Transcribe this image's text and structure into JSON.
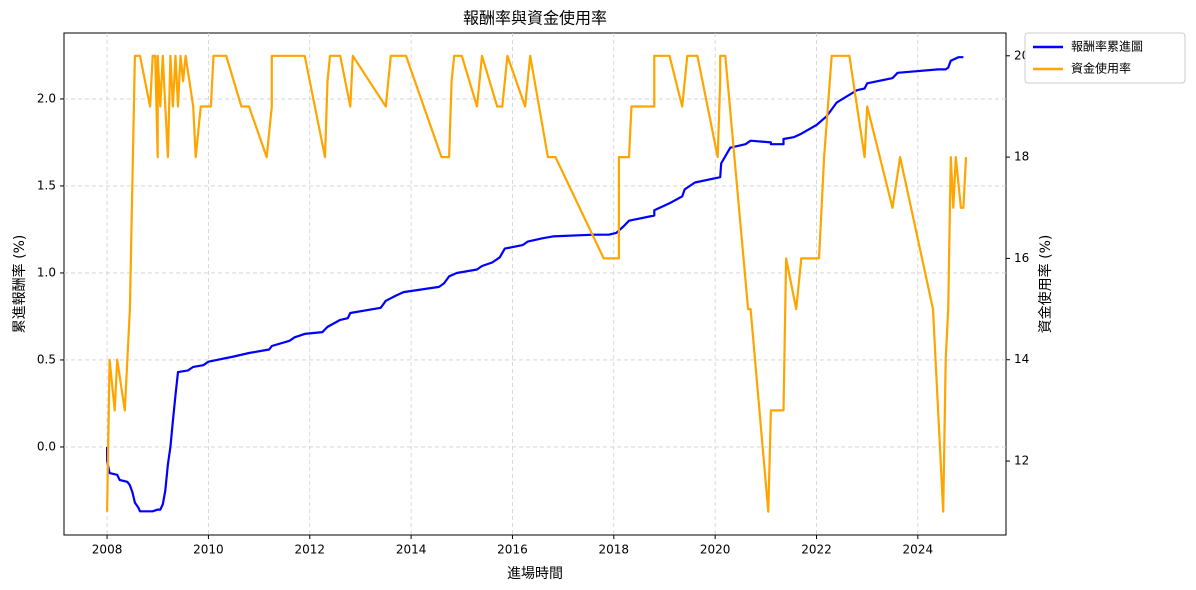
{
  "chart_data": {
    "type": "line",
    "title": "報酬率與資金使用率",
    "xlabel": "進場時間",
    "ylabel": "累進報酬率 (%)",
    "y2label": "資金使用率 (%)",
    "xlim": [
      2007.15,
      2025.74
    ],
    "xticks": [
      2008,
      2010,
      2012,
      2014,
      2016,
      2018,
      2020,
      2022,
      2024
    ],
    "ylim": [
      -0.506,
      2.379
    ],
    "yticks": [
      {
        "value": 0,
        "label": "0.0"
      },
      0.5,
      {
        "value": 1,
        "label": "1.0"
      },
      1.5,
      {
        "value": 2,
        "label": "2.0"
      }
    ],
    "y2lim": [
      10.54,
      20.45
    ],
    "y2ticks": [
      12,
      14,
      16,
      18,
      20
    ],
    "grid": true,
    "legend": "outside upper right",
    "series": [
      {
        "name": "報酬率累進圖",
        "color": "#0000ff",
        "x": [
          2008.0,
          2008.0,
          2008.05,
          2008.2,
          2008.25,
          2008.4,
          2008.45,
          2008.5,
          2008.55,
          2008.62,
          2008.65,
          2008.9,
          2009.0,
          2009.05,
          2009.1,
          2009.15,
          2009.2,
          2009.25,
          2009.3,
          2009.35,
          2009.4,
          2009.6,
          2009.7,
          2009.9,
          2010.0,
          2010.5,
          2010.8,
          2011.2,
          2011.25,
          2011.6,
          2011.7,
          2011.9,
          2012.25,
          2012.35,
          2012.6,
          2012.75,
          2012.8,
          2013.4,
          2013.5,
          2013.7,
          2013.85,
          2014.55,
          2014.65,
          2014.75,
          2014.9,
          2015.3,
          2015.4,
          2015.6,
          2015.75,
          2015.85,
          2016.2,
          2016.3,
          2016.6,
          2016.8,
          2017.6,
          2017.9,
          2018.05,
          2018.2,
          2018.3,
          2018.8,
          2018.8,
          2019.1,
          2019.35,
          2019.4,
          2019.6,
          2020.1,
          2020.12,
          2020.3,
          2020.6,
          2020.7,
          2021.1,
          2021.1,
          2021.35,
          2021.35,
          2021.55,
          2021.7,
          2022.0,
          2022.2,
          2022.3,
          2022.4,
          2022.8,
          2022.95,
          2023.0,
          2023.5,
          2023.6,
          2024.4,
          2024.55,
          2024.6,
          2024.65,
          2024.8,
          2024.9
        ],
        "values": [
          0.0,
          -0.08,
          -0.15,
          -0.16,
          -0.19,
          -0.2,
          -0.22,
          -0.26,
          -0.32,
          -0.35,
          -0.37,
          -0.37,
          -0.36,
          -0.36,
          -0.33,
          -0.25,
          -0.1,
          0.0,
          0.15,
          0.3,
          0.43,
          0.44,
          0.46,
          0.47,
          0.49,
          0.52,
          0.54,
          0.56,
          0.58,
          0.61,
          0.63,
          0.65,
          0.66,
          0.69,
          0.73,
          0.74,
          0.77,
          0.8,
          0.84,
          0.87,
          0.89,
          0.92,
          0.94,
          0.98,
          1.0,
          1.02,
          1.04,
          1.06,
          1.09,
          1.14,
          1.16,
          1.18,
          1.2,
          1.21,
          1.22,
          1.22,
          1.23,
          1.27,
          1.3,
          1.33,
          1.36,
          1.4,
          1.44,
          1.48,
          1.52,
          1.55,
          1.63,
          1.72,
          1.74,
          1.76,
          1.75,
          1.74,
          1.74,
          1.77,
          1.78,
          1.8,
          1.85,
          1.9,
          1.94,
          1.98,
          2.05,
          2.06,
          2.09,
          2.12,
          2.15,
          2.17,
          2.17,
          2.18,
          2.22,
          2.24,
          2.24
        ]
      },
      {
        "name": "資金使用率",
        "color": "#ffa500",
        "axis": "y2",
        "x": [
          2008.0,
          2008.05,
          2008.15,
          2008.2,
          2008.35,
          2008.45,
          2008.55,
          2008.65,
          2008.85,
          2008.9,
          2008.95,
          2009.0,
          2009.0,
          2009.05,
          2009.1,
          2009.15,
          2009.2,
          2009.25,
          2009.3,
          2009.35,
          2009.4,
          2009.45,
          2009.5,
          2009.55,
          2009.7,
          2009.75,
          2009.85,
          2010.05,
          2010.1,
          2010.35,
          2010.65,
          2010.8,
          2011.15,
          2011.25,
          2011.25,
          2011.9,
          2012.3,
          2012.35,
          2012.4,
          2012.6,
          2012.8,
          2012.85,
          2013.5,
          2013.6,
          2013.9,
          2014.6,
          2014.75,
          2014.8,
          2014.85,
          2015.0,
          2015.3,
          2015.4,
          2015.7,
          2015.8,
          2015.9,
          2016.25,
          2016.35,
          2016.7,
          2016.85,
          2017.8,
          2018.1,
          2018.1,
          2018.3,
          2018.35,
          2018.8,
          2018.8,
          2019.1,
          2019.35,
          2019.45,
          2019.65,
          2020.05,
          2020.1,
          2020.1,
          2020.2,
          2020.65,
          2020.7,
          2021.05,
          2021.1,
          2021.35,
          2021.4,
          2021.6,
          2021.7,
          2022.05,
          2022.1,
          2022.15,
          2022.3,
          2022.65,
          2022.95,
          2023.0,
          2023.5,
          2023.65,
          2024.3,
          2024.5,
          2024.55,
          2024.6,
          2024.65,
          2024.7,
          2024.75,
          2024.85,
          2024.9,
          2024.95
        ],
        "values": [
          11,
          14,
          13,
          14,
          13,
          15,
          20,
          20,
          19,
          20,
          20,
          18,
          20,
          19,
          20,
          19,
          18,
          20,
          19,
          20,
          19,
          20,
          19.5,
          20,
          19,
          18,
          19,
          19,
          20,
          20,
          19,
          19,
          18,
          19,
          20,
          20,
          18,
          19.5,
          20,
          20,
          19,
          20,
          19,
          20,
          20,
          18,
          18,
          19.5,
          20,
          20,
          19,
          20,
          19,
          19,
          20,
          19,
          20,
          18,
          18,
          16,
          16,
          18,
          18,
          19,
          19,
          20,
          20,
          19,
          20,
          20,
          18,
          19.5,
          20,
          20,
          15,
          15,
          11,
          13,
          13,
          16,
          15,
          16,
          16,
          17,
          18,
          20,
          20,
          18,
          19,
          17,
          18,
          15,
          11,
          14,
          15,
          18,
          17,
          18,
          17,
          17,
          18
        ]
      }
    ]
  }
}
